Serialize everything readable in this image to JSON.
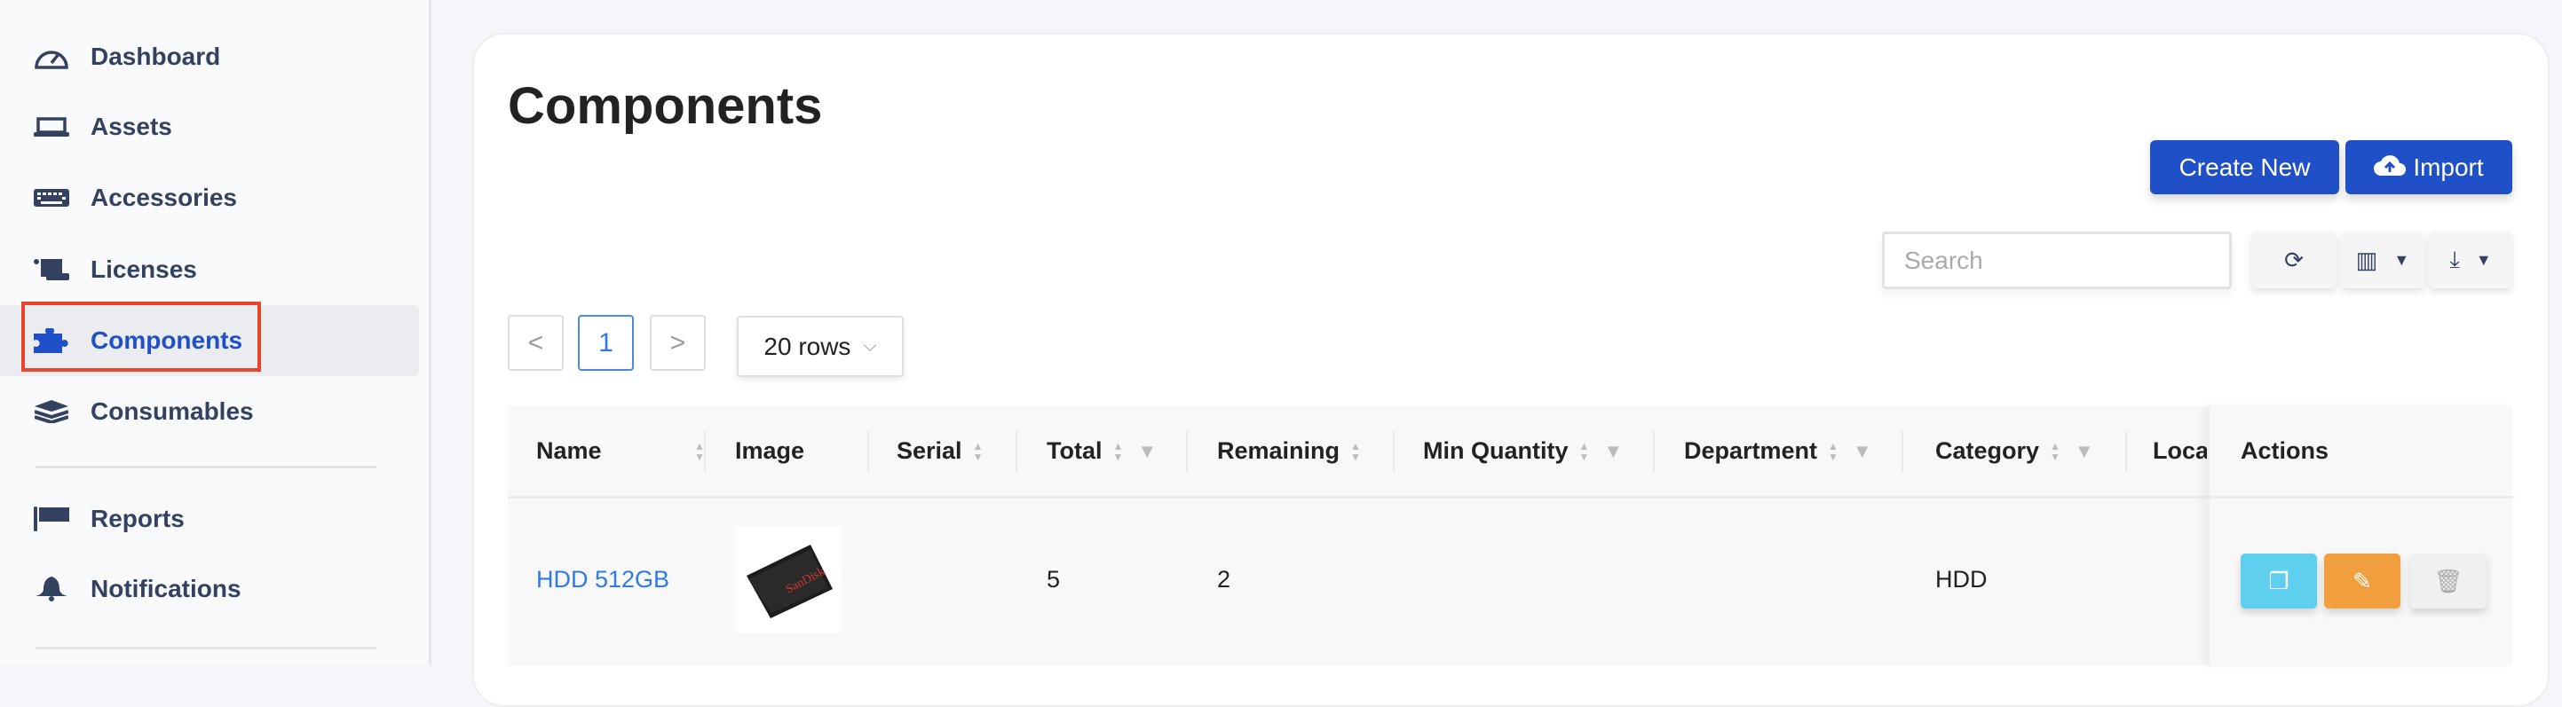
{
  "sidebar": {
    "items": [
      {
        "label": "Dashboard",
        "icon": "dashboard-gauge-icon"
      },
      {
        "label": "Assets",
        "icon": "laptop-icon"
      },
      {
        "label": "Accessories",
        "icon": "keyboard-icon"
      },
      {
        "label": "Licenses",
        "icon": "scroll-icon"
      },
      {
        "label": "Components",
        "icon": "puzzle-icon",
        "active": true
      },
      {
        "label": "Consumables",
        "icon": "layers-icon"
      },
      {
        "label": "Reports",
        "icon": "flag-icon"
      },
      {
        "label": "Notifications",
        "icon": "bell-icon"
      }
    ]
  },
  "page": {
    "title": "Components"
  },
  "toolbar": {
    "create_label": "Create New",
    "import_label": "Import",
    "search_placeholder": "Search",
    "search_value": ""
  },
  "pagination": {
    "prev": "<",
    "current": "1",
    "next": ">",
    "rows_label": "20 rows"
  },
  "table": {
    "columns": [
      "Name",
      "Image",
      "Serial",
      "Total",
      "Remaining",
      "Min Quantity",
      "Department",
      "Category",
      "Loca",
      "Actions"
    ],
    "rows": [
      {
        "name": "HDD 512GB",
        "image_alt": "SanDisk SSD PLUS",
        "serial": "",
        "total": "5",
        "remaining": "2",
        "min_quantity": "",
        "department": "",
        "category": "HDD",
        "location": ""
      }
    ]
  },
  "colors": {
    "accent": "#2050c8",
    "active_text": "#2050c8",
    "highlight": "#e8432b",
    "clone": "#5ecfee",
    "edit": "#f09e3e",
    "delete": "#f0f0f0",
    "link": "#2f7ae5"
  }
}
